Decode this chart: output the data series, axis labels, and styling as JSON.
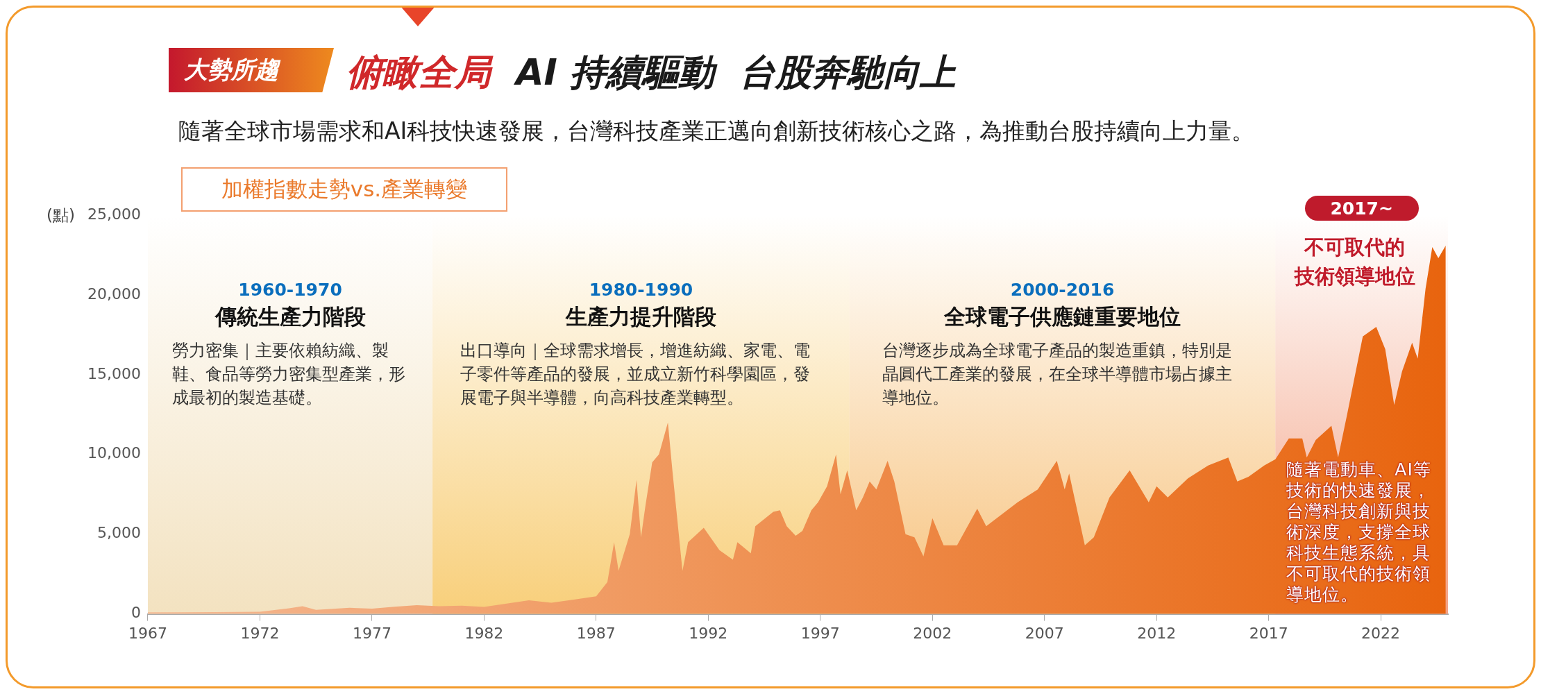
{
  "chart_data": {
    "type": "area",
    "title": "俯瞰全局  AI 持續驅動  台股奔馳向上",
    "subtitle": "隨著全球市場需求和AI科技快速發展，台灣科技產業正邁向創新技術核心之路，為推動台股持續向上力量。",
    "ylabel": "(點)",
    "annotations": [
      "大勢所趨",
      "加權指數走勢vs.產業轉變",
      "傳統生產力階段",
      "勞力密集｜主要依賴紡織、製鞋、食品等勞力密集型產業，形成最初的製造基礎。",
      "生產力提升階段",
      "出口導向｜全球需求增長，增進紡織、家電、電子零件等產品的發展，並成立新竹科學園區，發展電子與半導體，向高科技產業轉型。",
      "全球電子供應鏈重要地位",
      "台灣逐步成為全球電子產品的製造重鎮，特別是晶圓代工產業的發展，在全球半導體市場占據主導地位。",
      "不可取代的",
      "技術領導地位",
      "隨著電動車、AI等技術的快速發展，台灣科技創新與技術深度，支撐全球科技生態系統，具不可取代的技術領導地位。"
    ],
    "x": [
      1967,
      1970,
      1972,
      1973.3,
      1973.9,
      1974.5,
      1975,
      1976,
      1977,
      1978,
      1979,
      1980,
      1981,
      1982,
      1983,
      1984,
      1985,
      1986,
      1987,
      1987.5,
      1987.8,
      1988,
      1988.5,
      1988.8,
      1989,
      1989.2,
      1989.5,
      1989.8,
      1990.2,
      1990.4,
      1990.85,
      1991.1,
      1991.8,
      1992,
      1992.5,
      1993.1,
      1993.3,
      1993.9,
      1994.1,
      1994.9,
      1995.2,
      1995.5,
      1995.9,
      1996.2,
      1996.6,
      1996.9,
      1997.3,
      1997.7,
      1997.9,
      1998.2,
      1998.6,
      1998.9,
      1999.2,
      1999.5,
      2000,
      2000.3,
      2000.8,
      2001.2,
      2001.6,
      2002,
      2002.5,
      2003.1,
      2004,
      2004.4,
      2005.8,
      2006.7,
      2007.55,
      2007.9,
      2008.1,
      2008.8,
      2009.2,
      2009.9,
      2010.8,
      2011.65,
      2012,
      2012.5,
      2013.4,
      2014.3,
      2015.2,
      2015.6,
      2016.1,
      2016.8,
      2017.3,
      2017.9,
      2018.5,
      2018.7,
      2019.1,
      2019.8,
      2020.1,
      2020.5,
      2020.8,
      2021.2,
      2021.8,
      2022.2,
      2022.6,
      2022.95,
      2023.4,
      2023.65,
      2024,
      2024.3,
      2024.57,
      2024.9
    ],
    "values": [
      100,
      110,
      130,
      350,
      480,
      250,
      300,
      380,
      330,
      450,
      550,
      480,
      520,
      440,
      650,
      850,
      700,
      900,
      1100,
      2000,
      4500,
      2700,
      5000,
      8400,
      4800,
      6800,
      9500,
      10000,
      12000,
      9000,
      2700,
      4500,
      5400,
      5000,
      4000,
      3400,
      4500,
      3800,
      5500,
      6400,
      6500,
      5500,
      4900,
      5200,
      6500,
      7000,
      8000,
      10000,
      7500,
      9000,
      6500,
      7300,
      8300,
      7800,
      9600,
      8300,
      5000,
      4800,
      3600,
      6000,
      4300,
      4300,
      6600,
      5500,
      7000,
      7800,
      9600,
      7800,
      8800,
      4300,
      4800,
      7300,
      9000,
      7000,
      8000,
      7300,
      8500,
      9300,
      9800,
      8300,
      8600,
      9300,
      9700,
      11000,
      11000,
      9800,
      10900,
      11800,
      9800,
      12500,
      14600,
      17400,
      18000,
      16600,
      13100,
      15200,
      17000,
      16000,
      20400,
      23000,
      22300,
      23100
    ],
    "color": "#e8640e",
    "bands": [
      {
        "axis": "x",
        "from": 1967,
        "to": 1979.7,
        "label": "1960-1970",
        "color": "#f3e2c0"
      },
      {
        "axis": "x",
        "from": 1979.7,
        "to": 1998.3,
        "label": "1980-1990",
        "color": "#f8cf7a"
      },
      {
        "axis": "x",
        "from": 1998.3,
        "to": 2017.3,
        "label": "2000-2016",
        "color": "#f7c37e"
      },
      {
        "axis": "x",
        "from": 2017.3,
        "to": 2025,
        "label": "2017~",
        "color": "#f3a184"
      }
    ],
    "xlim": [
      1967,
      2025
    ],
    "xticks": [
      1967,
      1972,
      1977,
      1982,
      1987,
      1992,
      1997,
      2002,
      2007,
      2012,
      2017,
      2022
    ],
    "ylim": [
      0,
      25000
    ],
    "yticks": [
      0,
      {
        "value": 5000,
        "label": "5,000"
      },
      {
        "value": 10000,
        "label": "10,000"
      },
      {
        "value": 15000,
        "label": "15,000"
      },
      {
        "value": 20000,
        "label": "20,000"
      },
      {
        "value": 25000,
        "label": "25,000"
      }
    ],
    "grid": false,
    "legend": false
  }
}
